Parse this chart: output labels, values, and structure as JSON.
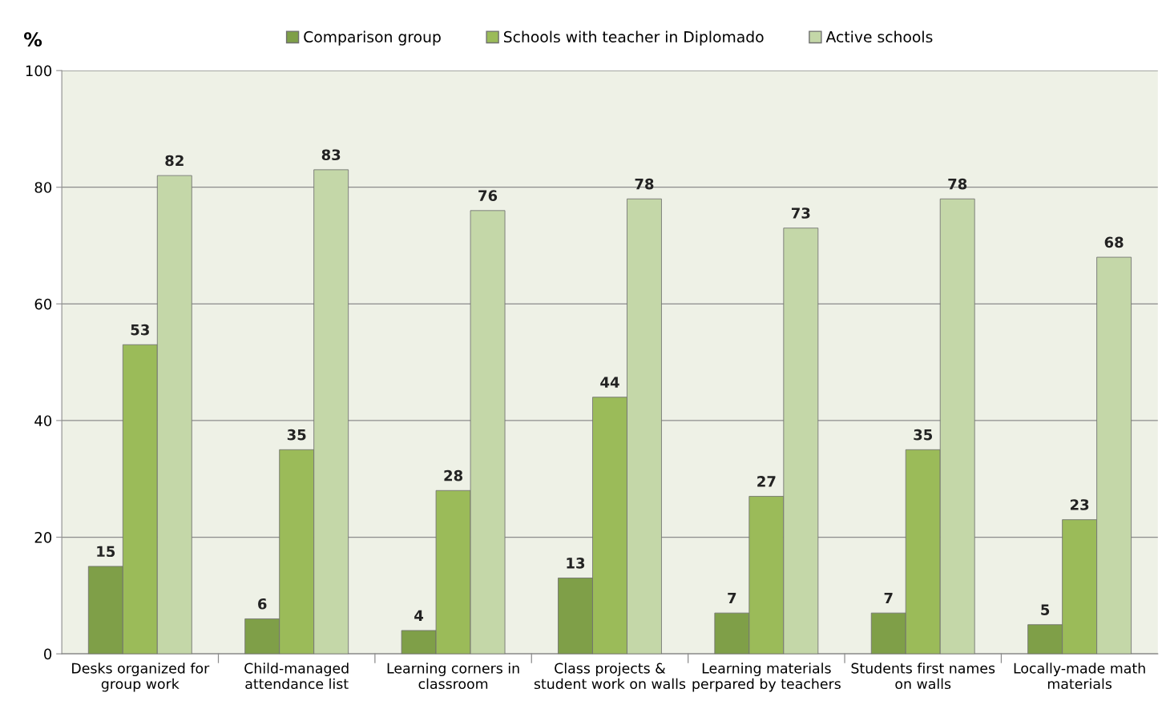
{
  "chart_data": {
    "type": "bar",
    "ylabel": "%",
    "categories": [
      "Desks organized for\ngroup work",
      "Child-managed\nattendance list",
      "Learning corners in\nclassroom",
      "Class projects &\nstudent work on walls",
      "Learning materials\nperpared by teachers",
      "Students first names\non walls",
      "Locally-made math\nmaterials"
    ],
    "series": [
      {
        "name": "Comparison group",
        "color": "#7f9f48",
        "values": [
          15,
          6,
          4,
          13,
          7,
          7,
          5
        ]
      },
      {
        "name": "Schools with teacher in Diplomado",
        "color": "#9bbb59",
        "values": [
          53,
          35,
          28,
          44,
          27,
          35,
          23
        ]
      },
      {
        "name": "Active schools",
        "color": "#c4d7a8",
        "values": [
          82,
          83,
          76,
          78,
          73,
          78,
          68
        ]
      }
    ],
    "ylim": [
      0,
      100
    ],
    "yticks": [
      0,
      20,
      40,
      60,
      80,
      100
    ],
    "grid": "y",
    "legend": "top",
    "data_labels": true
  }
}
